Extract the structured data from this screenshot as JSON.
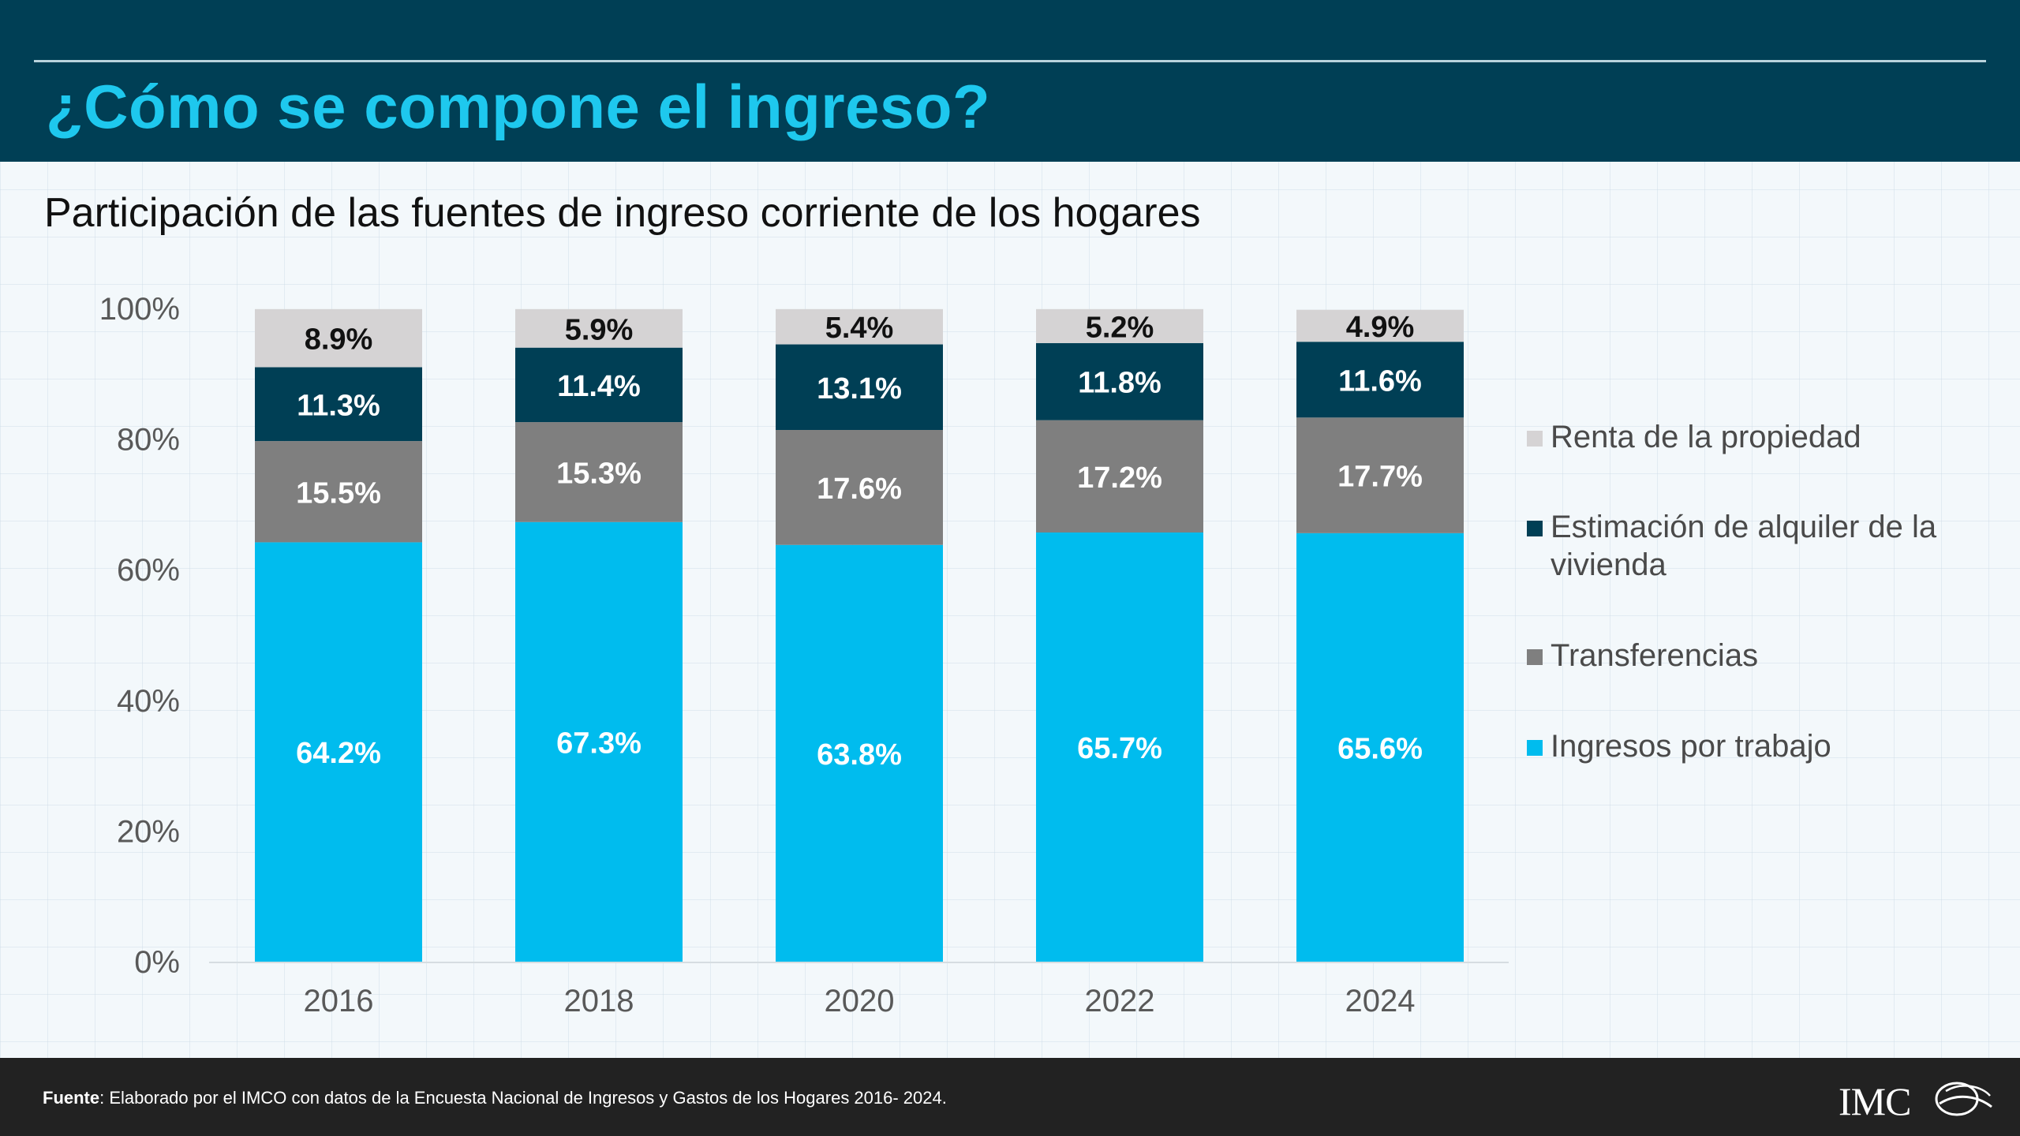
{
  "header": {
    "title": "¿Cómo se compone el ingreso?"
  },
  "subtitle": "Participación de las fuentes de ingreso corriente de los hogares",
  "chart_data": {
    "type": "bar",
    "stacked": true,
    "categories": [
      "2016",
      "2018",
      "2020",
      "2022",
      "2024"
    ],
    "series": [
      {
        "name": "Ingresos por trabajo",
        "color": "#00bcee",
        "values": [
          64.2,
          67.3,
          63.8,
          65.7,
          65.6
        ],
        "labels": [
          "64.2%",
          "67.3%",
          "63.8%",
          "65.7%",
          "65.6%"
        ]
      },
      {
        "name": "Transferencias",
        "color": "#7f7f7f",
        "values": [
          15.5,
          15.3,
          17.6,
          17.2,
          17.7
        ],
        "labels": [
          "15.5%",
          "15.3%",
          "17.6%",
          "17.2%",
          "17.7%"
        ]
      },
      {
        "name": "Estimación de alquiler de la vivienda",
        "color": "#003f55",
        "values": [
          11.3,
          11.4,
          13.1,
          11.8,
          11.6
        ],
        "labels": [
          "11.3%",
          "11.4%",
          "13.1%",
          "11.8%",
          "11.6%"
        ]
      },
      {
        "name": "Renta de la propiedad",
        "color": "#d5d3d4",
        "values": [
          8.9,
          5.9,
          5.4,
          5.2,
          4.9
        ],
        "labels": [
          "8.9%",
          "5.9%",
          "5.4%",
          "5.2%",
          "4.9%"
        ]
      }
    ],
    "ylim": [
      0,
      100
    ],
    "yticks": [
      "0%",
      "20%",
      "40%",
      "60%",
      "80%",
      "100%"
    ],
    "xlabel": "",
    "ylabel": "",
    "legend_position": "right",
    "legend_order": [
      "Renta de la propiedad",
      "Estimación de alquiler de la vivienda",
      "Transferencias",
      "Ingresos por trabajo"
    ],
    "grid": false
  },
  "footer": {
    "source_label": "Fuente",
    "source_text": ": Elaborado por el IMCO con datos de la Encuesta Nacional de Ingresos y Gastos de los Hogares 2016- 2024.",
    "logo_text": "IMCO"
  }
}
